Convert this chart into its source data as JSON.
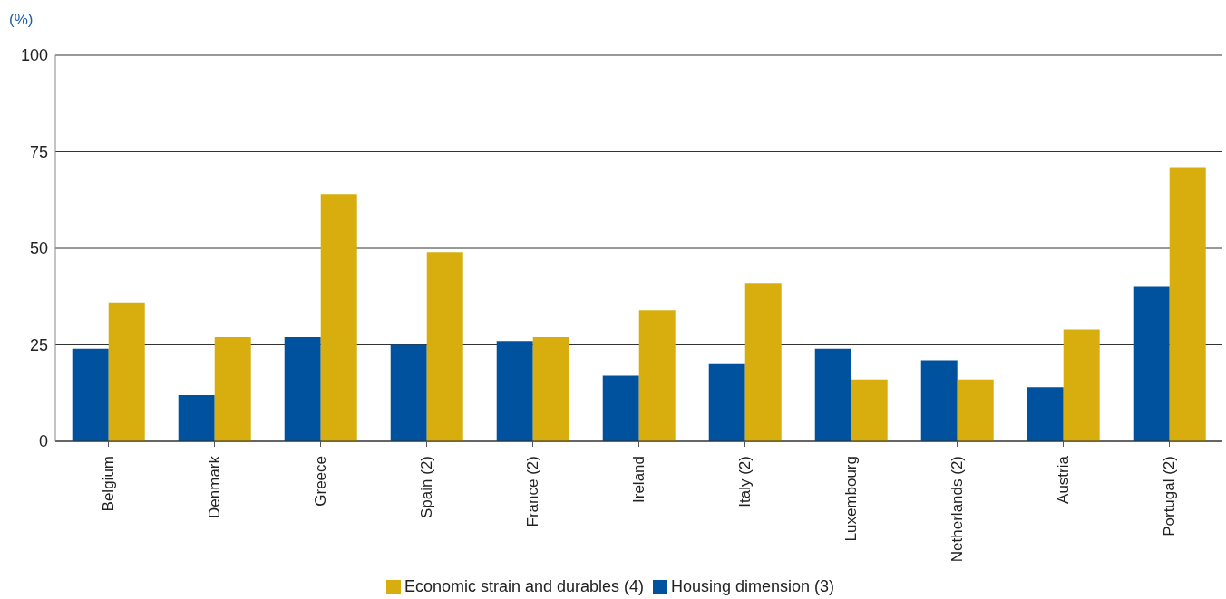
{
  "chart_data": {
    "type": "bar",
    "ylabel": "(%)",
    "categories": [
      "Belgium",
      "Denmark",
      "Greece",
      "Spain (2)",
      "France (2)",
      "Ireland",
      "Italy (2)",
      "Luxembourg",
      "Netherlands (2)",
      "Austria",
      "Portugal (2)"
    ],
    "series": [
      {
        "name": "Housing dimension (3)",
        "color": "#00519e",
        "values": [
          24,
          12,
          27,
          25,
          26,
          17,
          20,
          24,
          21,
          14,
          40
        ]
      },
      {
        "name": "Economic strain and durables (4)",
        "color": "#d7ae0e",
        "values": [
          36,
          27,
          64,
          49,
          27,
          34,
          41,
          16,
          16,
          29,
          71
        ]
      }
    ],
    "ylim": [
      0,
      100
    ],
    "yticks": [
      0,
      25,
      50,
      75,
      100
    ],
    "grid": "y",
    "legend": "bottom"
  }
}
